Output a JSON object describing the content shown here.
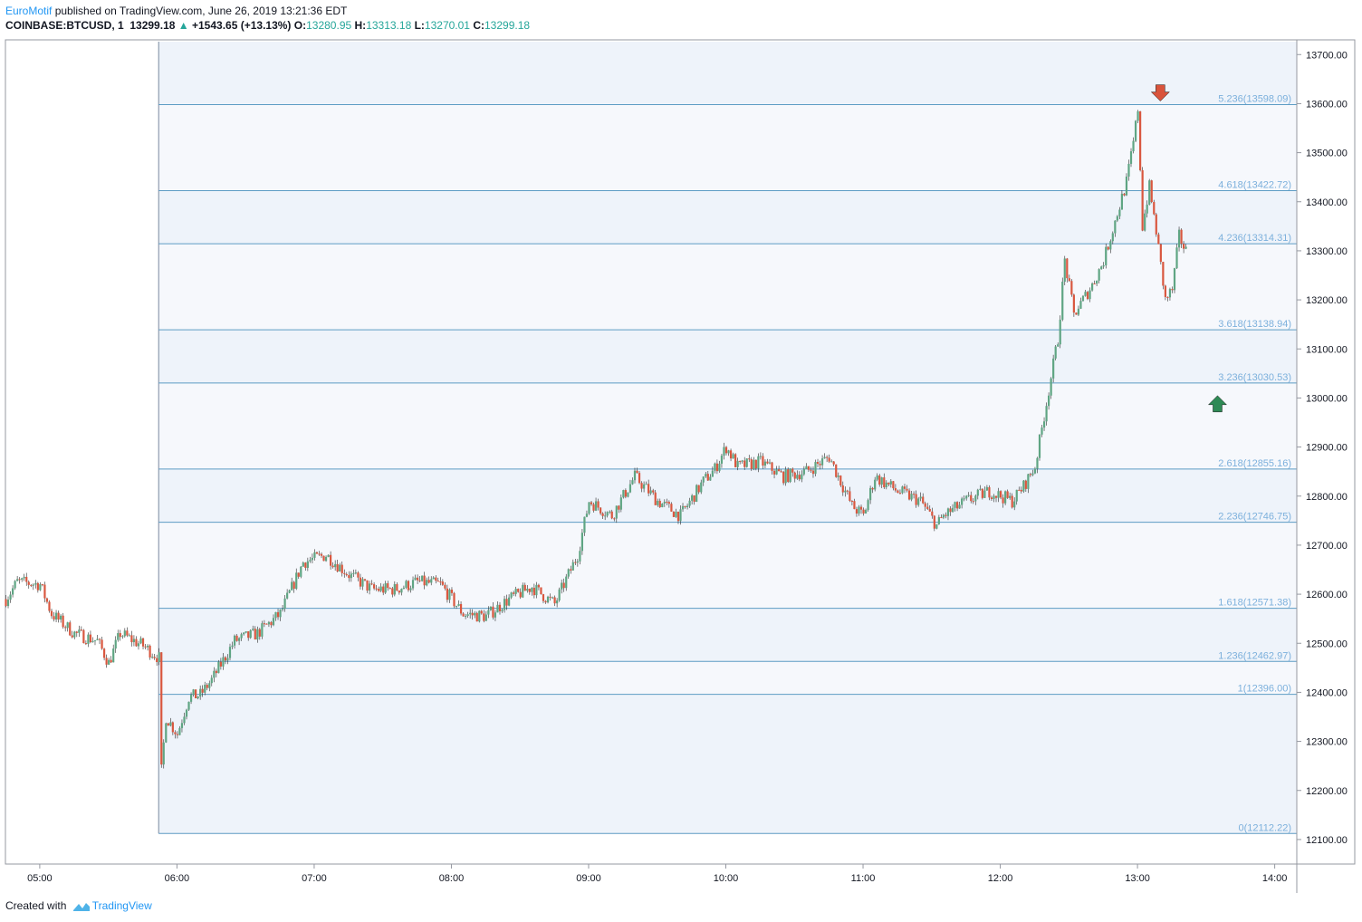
{
  "header": {
    "author": "EuroMotif",
    "published": "published on TradingView.com, June 26, 2019 13:21:36 EDT",
    "symbol": "COINBASE:BTCUSD, 1",
    "last": "13299.18",
    "change": "+1543.65 (+13.13%)",
    "o_label": "O:",
    "o": "13280.95",
    "h_label": "H:",
    "h": "13313.18",
    "l_label": "L:",
    "l": "13270.01",
    "c_label": "C:",
    "c": "13299.18"
  },
  "footer": {
    "created_with": "Created with",
    "brand": "TradingView"
  },
  "colors": {
    "up": "#26a69a",
    "down": "#ef5350",
    "candle_up": "#5fa583",
    "candle_down": "#d9573f",
    "fib_line": "#5d9cc4",
    "fib_label": "#7cb0dc",
    "band_a": "#eef3fa",
    "band_b": "#f6f8fc",
    "arrow_down": "#d9533b",
    "arrow_up": "#2e8a55"
  },
  "chart_data": {
    "type": "candlestick",
    "instrument": "COINBASE:BTCUSD",
    "interval": "1",
    "x_range": [
      "04:45",
      "14:35"
    ],
    "y_range": [
      12050,
      13730
    ],
    "y_ticks": [
      "13700.00",
      "13600.00",
      "13500.00",
      "13400.00",
      "13300.00",
      "13200.00",
      "13100.00",
      "13000.00",
      "12900.00",
      "12800.00",
      "12700.00",
      "12600.00",
      "12500.00",
      "12400.00",
      "12300.00",
      "12200.00",
      "12100.00"
    ],
    "x_ticks": [
      "05:00",
      "06:00",
      "07:00",
      "08:00",
      "09:00",
      "10:00",
      "11:00",
      "12:00",
      "13:00",
      "14:00"
    ],
    "fib_levels": [
      {
        "label": "5.236(13598.09)",
        "price": 13598.09
      },
      {
        "label": "4.618(13422.72)",
        "price": 13422.72
      },
      {
        "label": "4.236(13314.31)",
        "price": 13314.31
      },
      {
        "label": "3.618(13138.94)",
        "price": 13138.94
      },
      {
        "label": "3.236(13030.53)",
        "price": 13030.53
      },
      {
        "label": "2.618(12855.16)",
        "price": 12855.16
      },
      {
        "label": "2.236(12746.75)",
        "price": 12746.75
      },
      {
        "label": "1.618(12571.38)",
        "price": 12571.38
      },
      {
        "label": "1.236(12462.97)",
        "price": 12462.97
      },
      {
        "label": "1(12396.00)",
        "price": 12396.0
      },
      {
        "label": "0(12112.22)",
        "price": 12112.22
      }
    ],
    "fib_start_time": "05:52",
    "price_path": [
      [
        "04:45",
        12590
      ],
      [
        "04:50",
        12625
      ],
      [
        "05:00",
        12620
      ],
      [
        "05:05",
        12560
      ],
      [
        "05:15",
        12520
      ],
      [
        "05:25",
        12505
      ],
      [
        "05:30",
        12460
      ],
      [
        "05:35",
        12520
      ],
      [
        "05:45",
        12495
      ],
      [
        "05:52",
        12470
      ],
      [
        "05:53",
        12240
      ],
      [
        "05:55",
        12350
      ],
      [
        "06:00",
        12315
      ],
      [
        "06:05",
        12390
      ],
      [
        "06:10",
        12395
      ],
      [
        "06:15",
        12425
      ],
      [
        "06:25",
        12505
      ],
      [
        "06:35",
        12520
      ],
      [
        "06:45",
        12560
      ],
      [
        "06:55",
        12665
      ],
      [
        "07:05",
        12680
      ],
      [
        "07:15",
        12640
      ],
      [
        "07:25",
        12610
      ],
      [
        "07:35",
        12610
      ],
      [
        "07:45",
        12625
      ],
      [
        "07:55",
        12620
      ],
      [
        "08:05",
        12560
      ],
      [
        "08:15",
        12555
      ],
      [
        "08:25",
        12590
      ],
      [
        "08:35",
        12615
      ],
      [
        "08:45",
        12580
      ],
      [
        "08:55",
        12680
      ],
      [
        "09:00",
        12790
      ],
      [
        "09:10",
        12760
      ],
      [
        "09:15",
        12800
      ],
      [
        "09:20",
        12840
      ],
      [
        "09:30",
        12790
      ],
      [
        "09:40",
        12760
      ],
      [
        "09:50",
        12830
      ],
      [
        "09:55",
        12855
      ],
      [
        "10:00",
        12900
      ],
      [
        "10:05",
        12860
      ],
      [
        "10:15",
        12870
      ],
      [
        "10:25",
        12840
      ],
      [
        "10:35",
        12850
      ],
      [
        "10:45",
        12880
      ],
      [
        "10:50",
        12830
      ],
      [
        "10:55",
        12780
      ],
      [
        "11:00",
        12760
      ],
      [
        "11:05",
        12840
      ],
      [
        "11:15",
        12810
      ],
      [
        "11:25",
        12790
      ],
      [
        "11:32",
        12740
      ],
      [
        "11:35",
        12760
      ],
      [
        "11:45",
        12790
      ],
      [
        "11:55",
        12810
      ],
      [
        "12:05",
        12790
      ],
      [
        "12:10",
        12820
      ],
      [
        "12:15",
        12860
      ],
      [
        "12:20",
        12990
      ],
      [
        "12:25",
        13120
      ],
      [
        "12:28",
        13280
      ],
      [
        "12:32",
        13170
      ],
      [
        "12:40",
        13230
      ],
      [
        "12:45",
        13280
      ],
      [
        "12:50",
        13360
      ],
      [
        "12:55",
        13440
      ],
      [
        "12:58",
        13520
      ],
      [
        "13:00",
        13590
      ],
      [
        "13:02",
        13350
      ],
      [
        "13:05",
        13430
      ],
      [
        "13:08",
        13340
      ],
      [
        "13:12",
        13200
      ],
      [
        "13:15",
        13220
      ],
      [
        "13:18",
        13330
      ],
      [
        "13:21",
        13299
      ]
    ],
    "annotations": [
      {
        "type": "arrow-down",
        "time": "13:10",
        "price": 13620,
        "color": "#d9533b"
      },
      {
        "type": "arrow-up",
        "time": "13:35",
        "price": 12990,
        "color": "#2e8a55"
      }
    ]
  }
}
